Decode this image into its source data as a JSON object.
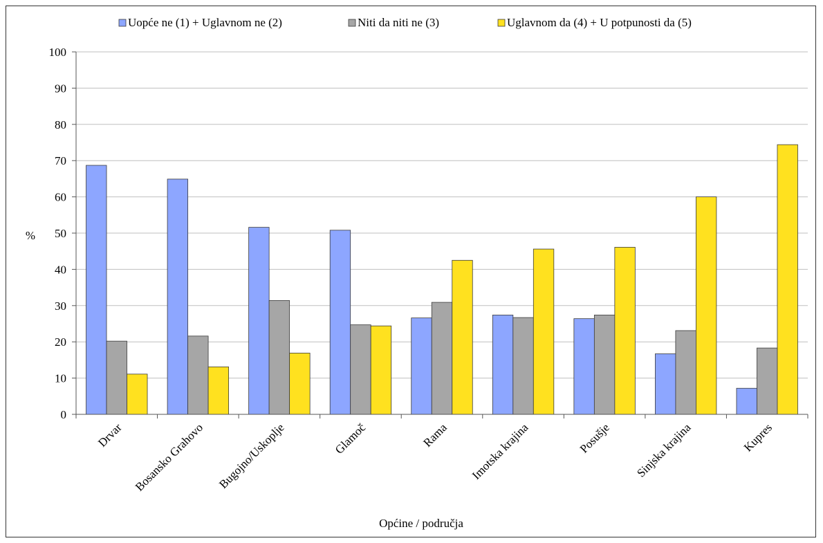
{
  "chart_data": {
    "type": "bar",
    "title": "",
    "xlabel": "Općine / područja",
    "ylabel": "%",
    "ylim": [
      0,
      100
    ],
    "yticks": [
      0,
      10,
      20,
      30,
      40,
      50,
      60,
      70,
      80,
      90,
      100
    ],
    "grid": true,
    "legend_position": "top",
    "categories": [
      "Drvar",
      "Bosansko Grahovo",
      "Bugojno/Uskoplje",
      "Glamoč",
      "Rama",
      "Imotska krajina",
      "Posušje",
      "Sinjska krajina",
      "Kupres"
    ],
    "series": [
      {
        "name": "Uopće ne (1) + Uglavnom ne (2)",
        "color": "#8DA6FF",
        "values": [
          68.7,
          64.9,
          51.6,
          50.8,
          26.6,
          27.4,
          26.4,
          16.7,
          7.2
        ]
      },
      {
        "name": "Niti da niti ne (3)",
        "color": "#A6A6A6",
        "values": [
          20.2,
          21.6,
          31.4,
          24.7,
          30.9,
          26.7,
          27.4,
          23.1,
          18.3
        ]
      },
      {
        "name": "Uglavnom da (4) + U potpunosti da (5)",
        "color": "#FFE11F",
        "values": [
          11.1,
          13.1,
          16.9,
          24.4,
          42.5,
          45.6,
          46.1,
          60.0,
          74.4
        ]
      }
    ]
  }
}
